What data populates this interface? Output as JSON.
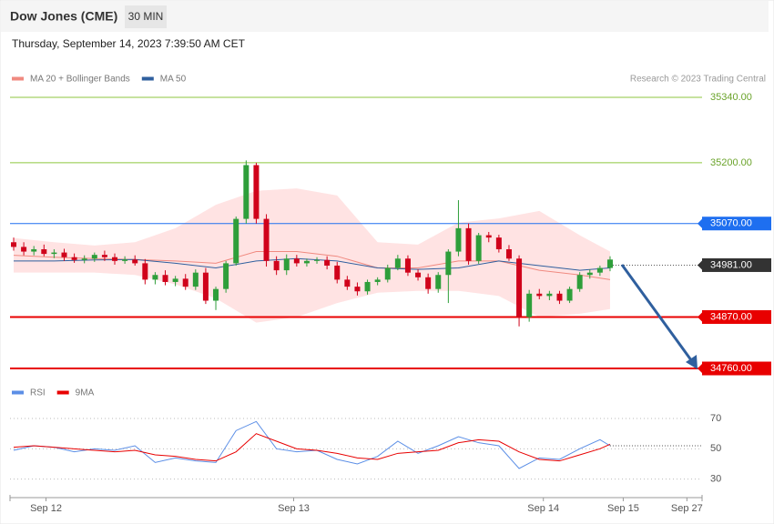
{
  "header": {
    "title": "Dow Jones (CME)",
    "interval": "30 MIN",
    "timestamp": "Thursday, September 14, 2023 7:39:50 AM CET",
    "credit": "Research © 2023 Trading Central"
  },
  "chart_data": [
    {
      "type": "candlestick",
      "legend": [
        {
          "name": "MA 20 + Bollinger Bands",
          "color": "#f08a80"
        },
        {
          "name": "MA 50",
          "color": "#2f5f9e"
        }
      ],
      "open": [
        35030,
        35020,
        35010,
        35015,
        35005,
        35008,
        34998,
        34992,
        34995,
        35003,
        34998,
        34990,
        34993,
        34985,
        34950,
        34960,
        34945,
        34952,
        34935,
        34965,
        34905,
        34930,
        34985,
        35080,
        35195,
        35080,
        34990,
        34970,
        34995,
        34985,
        34990,
        34992,
        34980,
        34950,
        34935,
        34925,
        34945,
        34950,
        34975,
        34995,
        34965,
        34955,
        34930,
        34960,
        35010,
        35060,
        34990,
        35045,
        35040,
        35015,
        34995,
        34870,
        34920,
        34915,
        34920,
        34905,
        34930,
        34960,
        34965,
        34975
      ],
      "high": [
        35040,
        35030,
        35022,
        35025,
        35015,
        35016,
        35006,
        35002,
        35008,
        35012,
        35006,
        35000,
        35002,
        34994,
        34966,
        34970,
        34958,
        34962,
        34972,
        34975,
        34935,
        34990,
        35085,
        35205,
        35200,
        35090,
        35000,
        35004,
        35003,
        34995,
        34998,
        35000,
        34988,
        34958,
        34944,
        34950,
        34955,
        34982,
        35003,
        35002,
        34972,
        34963,
        34966,
        35015,
        35120,
        35070,
        35050,
        35052,
        35046,
        35024,
        35002,
        34928,
        34930,
        34926,
        34926,
        34935,
        34966,
        34972,
        34980,
        35000
      ],
      "low": [
        35012,
        35002,
        35002,
        35000,
        34996,
        34990,
        34986,
        34985,
        34988,
        34990,
        34982,
        34984,
        34980,
        34940,
        34940,
        34938,
        34936,
        34928,
        34928,
        34898,
        34885,
        34922,
        34980,
        35070,
        35070,
        34978,
        34960,
        34960,
        34978,
        34978,
        34984,
        34972,
        34942,
        34928,
        34916,
        34918,
        34938,
        34944,
        34970,
        34958,
        34948,
        34920,
        34922,
        34900,
        35000,
        34982,
        34984,
        35030,
        35008,
        34990,
        34850,
        34860,
        34908,
        34906,
        34898,
        34900,
        34924,
        34952,
        34958,
        34968
      ],
      "close": [
        35020,
        35010,
        35015,
        35005,
        35008,
        34998,
        34992,
        34995,
        35003,
        34998,
        34990,
        34993,
        34985,
        34950,
        34960,
        34945,
        34952,
        34935,
        34965,
        34905,
        34930,
        34985,
        35080,
        35195,
        35080,
        34990,
        34970,
        34995,
        34985,
        34990,
        34992,
        34980,
        34950,
        34935,
        34925,
        34945,
        34950,
        34975,
        34995,
        34965,
        34955,
        34930,
        34960,
        35010,
        35060,
        34990,
        35045,
        35040,
        35015,
        34995,
        34870,
        34920,
        34915,
        34920,
        34905,
        34930,
        34960,
        34965,
        34975,
        34993
      ],
      "bands": {
        "x": [
          0,
          4,
          8,
          12,
          16,
          20,
          24,
          28,
          32,
          36,
          40,
          44,
          48,
          52,
          56,
          59
        ],
        "upper": [
          35039,
          35030,
          35023,
          35030,
          35060,
          35110,
          35140,
          35145,
          35130,
          35030,
          35025,
          35072,
          35081,
          35097,
          35045,
          35010
        ],
        "lower": [
          34965,
          34965,
          34965,
          34960,
          34940,
          34910,
          34858,
          34870,
          34900,
          34922,
          34926,
          34926,
          34915,
          34870,
          34877,
          34887
        ],
        "ma20": [
          35002,
          34998,
          34995,
          34993,
          34990,
          34985,
          35010,
          35010,
          35000,
          34975,
          34975,
          34990,
          34990,
          34970,
          34960,
          34950
        ],
        "ma50": [
          34990,
          34990,
          34992,
          34993,
          34985,
          34975,
          34990,
          34995,
          34990,
          34975,
          34972,
          34975,
          34990,
          34980,
          34970,
          34975
        ]
      },
      "levels": [
        {
          "value": 35340,
          "label": "35340.00",
          "color": "#8dc63f",
          "tag": false
        },
        {
          "value": 35200,
          "label": "35200.00",
          "color": "#8dc63f",
          "tag": false
        },
        {
          "value": 35070,
          "label": "35070.00",
          "color": "#1e6ff0",
          "tag": true
        },
        {
          "value": 34981,
          "label": "34981.00",
          "color": "#333333",
          "tag": true
        },
        {
          "value": 34870,
          "label": "34870.00",
          "color": "#e80000",
          "tag": true
        },
        {
          "value": 34760,
          "label": "34760.00",
          "color": "#e80000",
          "tag": true
        }
      ],
      "xlim": [
        -0.36,
        68.1
      ],
      "ylim": [
        34740,
        35360
      ],
      "xticks": [
        {
          "value": 3.2,
          "label": "Sep 12"
        },
        {
          "value": 27.7,
          "label": "Sep 13"
        },
        {
          "value": 52.4,
          "label": "Sep 14"
        },
        {
          "value": 60.3,
          "label": "Sep 15"
        },
        {
          "value": 66.6,
          "label": "Sep 27"
        }
      ]
    },
    {
      "type": "line",
      "x": [
        0,
        2,
        4,
        6,
        8,
        10,
        12,
        14,
        16,
        18,
        20,
        22,
        24,
        26,
        28,
        30,
        32,
        34,
        36,
        38,
        40,
        42,
        44,
        46,
        48,
        50,
        52,
        54,
        56,
        58,
        59
      ],
      "series": [
        {
          "name": "RSI",
          "color": "#5b8ee6",
          "values": [
            49,
            52,
            51,
            48,
            50,
            49,
            52,
            41,
            44,
            42,
            41,
            62,
            68,
            50,
            48,
            49,
            43,
            40,
            45,
            55,
            47,
            52,
            58,
            54,
            52,
            37,
            44,
            43,
            50,
            56,
            52
          ]
        },
        {
          "name": "9MA",
          "color": "#e80000",
          "values": [
            51,
            52,
            51,
            50,
            49,
            48,
            49,
            46,
            45,
            43,
            42,
            48,
            60,
            55,
            50,
            49,
            47,
            44,
            43,
            47,
            48,
            49,
            54,
            56,
            55,
            48,
            43,
            42,
            46,
            50,
            53
          ]
        }
      ],
      "ylim": [
        22,
        79
      ],
      "yticks": [
        70,
        50,
        30
      ]
    }
  ]
}
